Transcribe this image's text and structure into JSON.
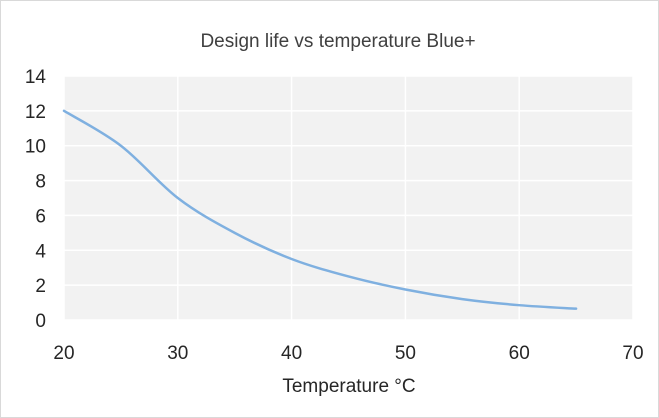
{
  "chart_data": {
    "type": "line",
    "title": "Design life vs temperature Blue+",
    "xlabel": "Temperature °C",
    "ylabel": "",
    "xlim": [
      20,
      70
    ],
    "ylim": [
      0,
      14
    ],
    "xticks": [
      20,
      30,
      40,
      50,
      60,
      70
    ],
    "yticks": [
      0,
      2,
      4,
      6,
      8,
      10,
      12,
      14
    ],
    "grid": true,
    "legend": "none",
    "plot_background": "#f2f2f2",
    "gridline_color": "#ffffff",
    "series": [
      {
        "color": "#7fb0e0",
        "x": [
          20,
          25,
          30,
          35,
          40,
          45,
          50,
          55,
          60,
          65
        ],
        "y": [
          12.0,
          10.0,
          7.0,
          5.0,
          3.5,
          2.5,
          1.75,
          1.2,
          0.85,
          0.65
        ]
      }
    ]
  }
}
